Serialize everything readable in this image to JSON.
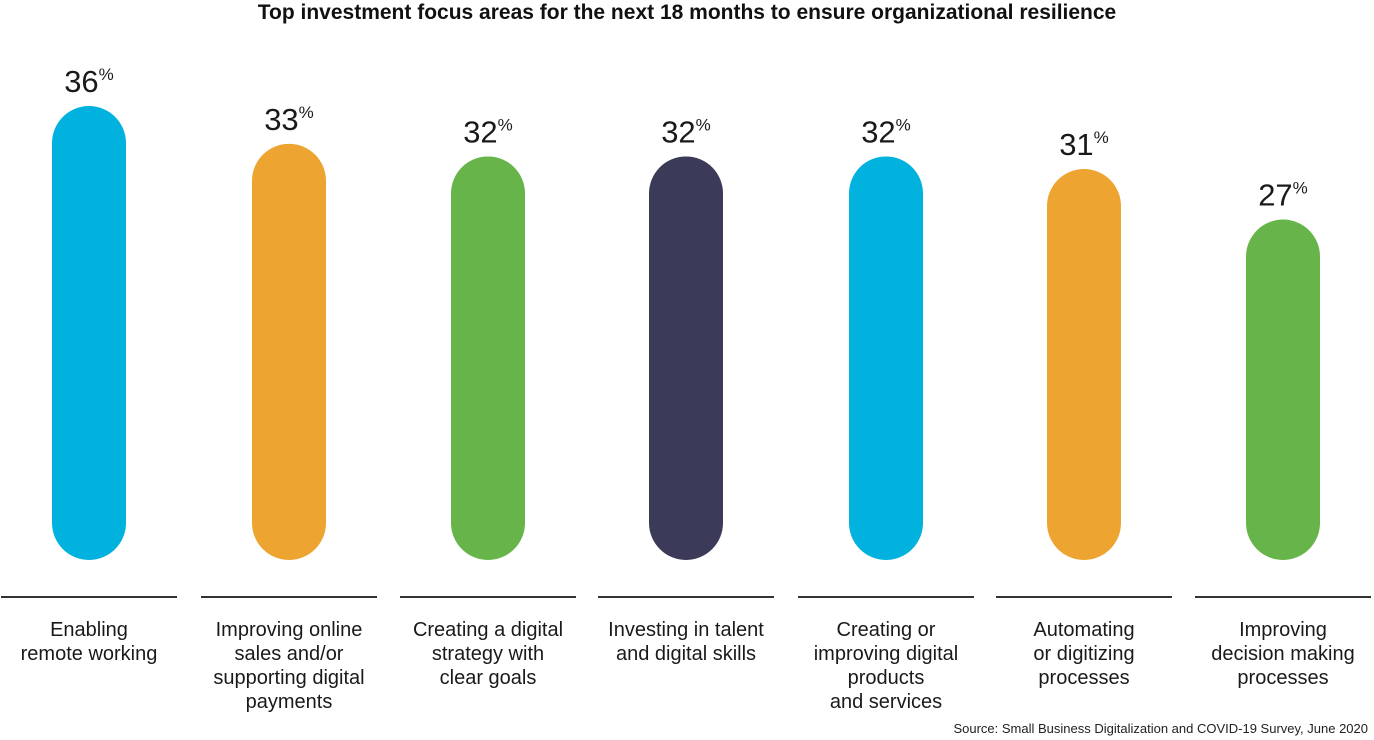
{
  "chart_data": {
    "type": "bar",
    "title": "Top investment focus areas for the next 18 months to ensure organizational resilience",
    "categories": [
      [
        "Enabling",
        "remote working"
      ],
      [
        "Improving online",
        "sales and/or",
        "supporting digital",
        "payments"
      ],
      [
        "Creating a digital",
        "strategy with",
        "clear goals"
      ],
      [
        "Investing in talent",
        "and digital skills"
      ],
      [
        "Creating or",
        "improving digital",
        "products",
        "and services"
      ],
      [
        "Automating",
        "or digitizing",
        "processes"
      ],
      [
        "Improving",
        "decision making",
        "processes"
      ]
    ],
    "values": [
      36,
      33,
      32,
      32,
      32,
      31,
      27
    ],
    "value_suffix": "%",
    "colors": [
      "#00B2DD",
      "#EDA430",
      "#67B54A",
      "#3B3A59",
      "#00B2DD",
      "#EDA430",
      "#67B54A"
    ],
    "xlabel": "",
    "ylabel": "",
    "ylim": [
      0,
      36
    ],
    "grid": false,
    "legend": "none"
  },
  "source": "Source: Small Business Digitalization and COVID-19 Survey, June 2020"
}
